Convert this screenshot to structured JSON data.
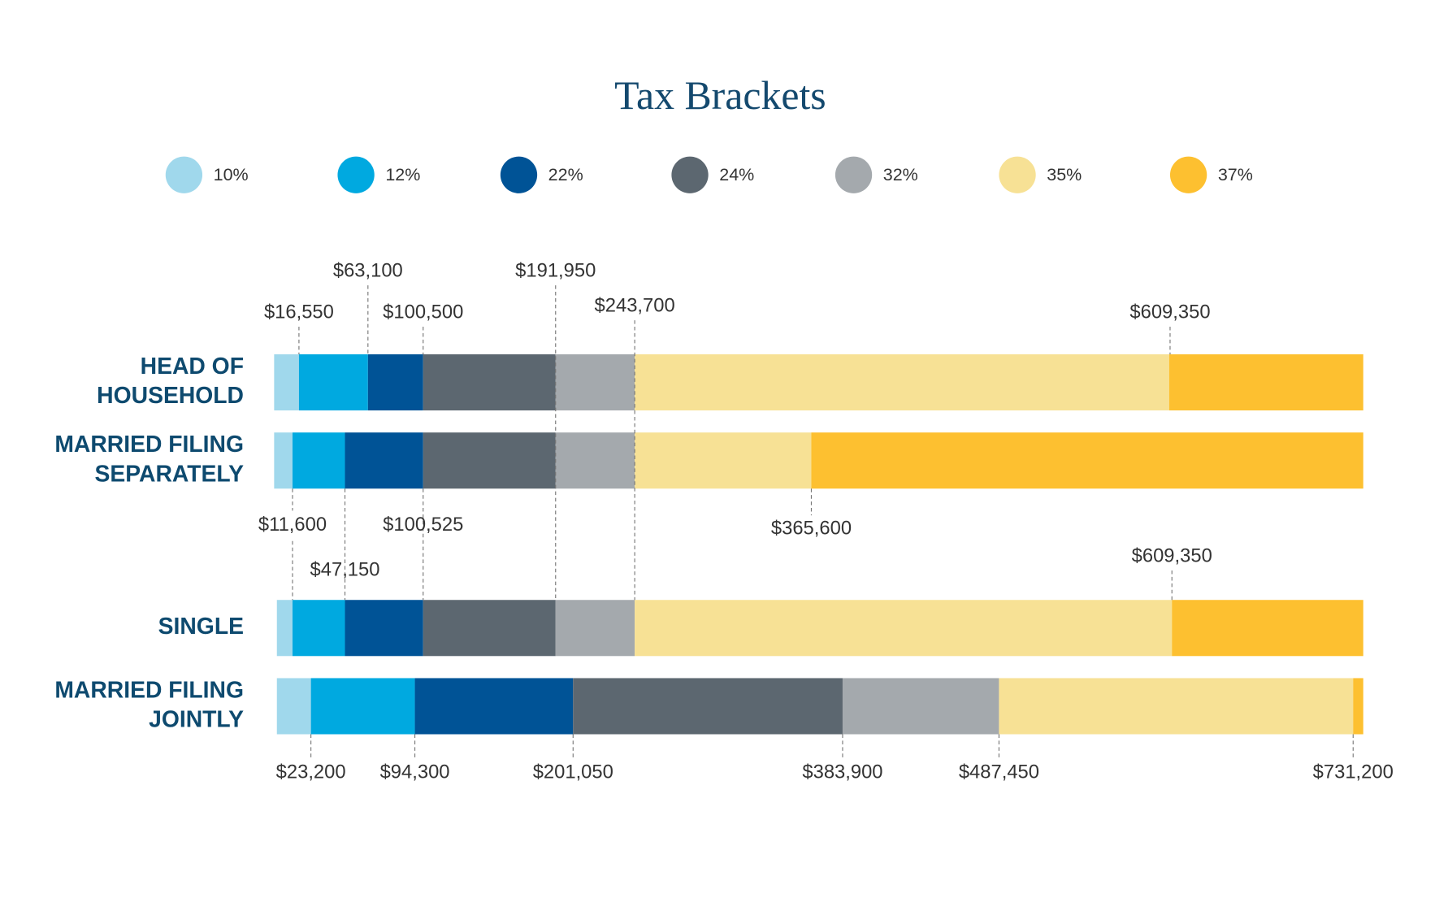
{
  "title": "Tax Brackets",
  "legend": [
    {
      "label": "10%",
      "color": "#a0d8ec"
    },
    {
      "label": "12%",
      "color": "#00a9e0"
    },
    {
      "label": "22%",
      "color": "#005396"
    },
    {
      "label": "24%",
      "color": "#5c6770"
    },
    {
      "label": "32%",
      "color": "#a4a9ad"
    },
    {
      "label": "35%",
      "color": "#f7e195"
    },
    {
      "label": "37%",
      "color": "#fdc030"
    }
  ],
  "rows": [
    {
      "label": [
        "HEAD OF",
        "HOUSEHOLD"
      ]
    },
    {
      "label": [
        "MARRIED FILING",
        "SEPARATELY"
      ]
    },
    {
      "label": [
        "SINGLE"
      ]
    },
    {
      "label": [
        "MARRIED FILING",
        "JOINTLY"
      ]
    }
  ],
  "thresholds": [
    "$16,550",
    "$63,100",
    "$100,500",
    "$191,950",
    "$243,700",
    "$609,350",
    "$11,600",
    "$47,150",
    "$100,525",
    "$365,600",
    "$609,350",
    "$23,200",
    "$94,300",
    "$201,050",
    "$383,900",
    "$487,450",
    "$731,200"
  ]
}
